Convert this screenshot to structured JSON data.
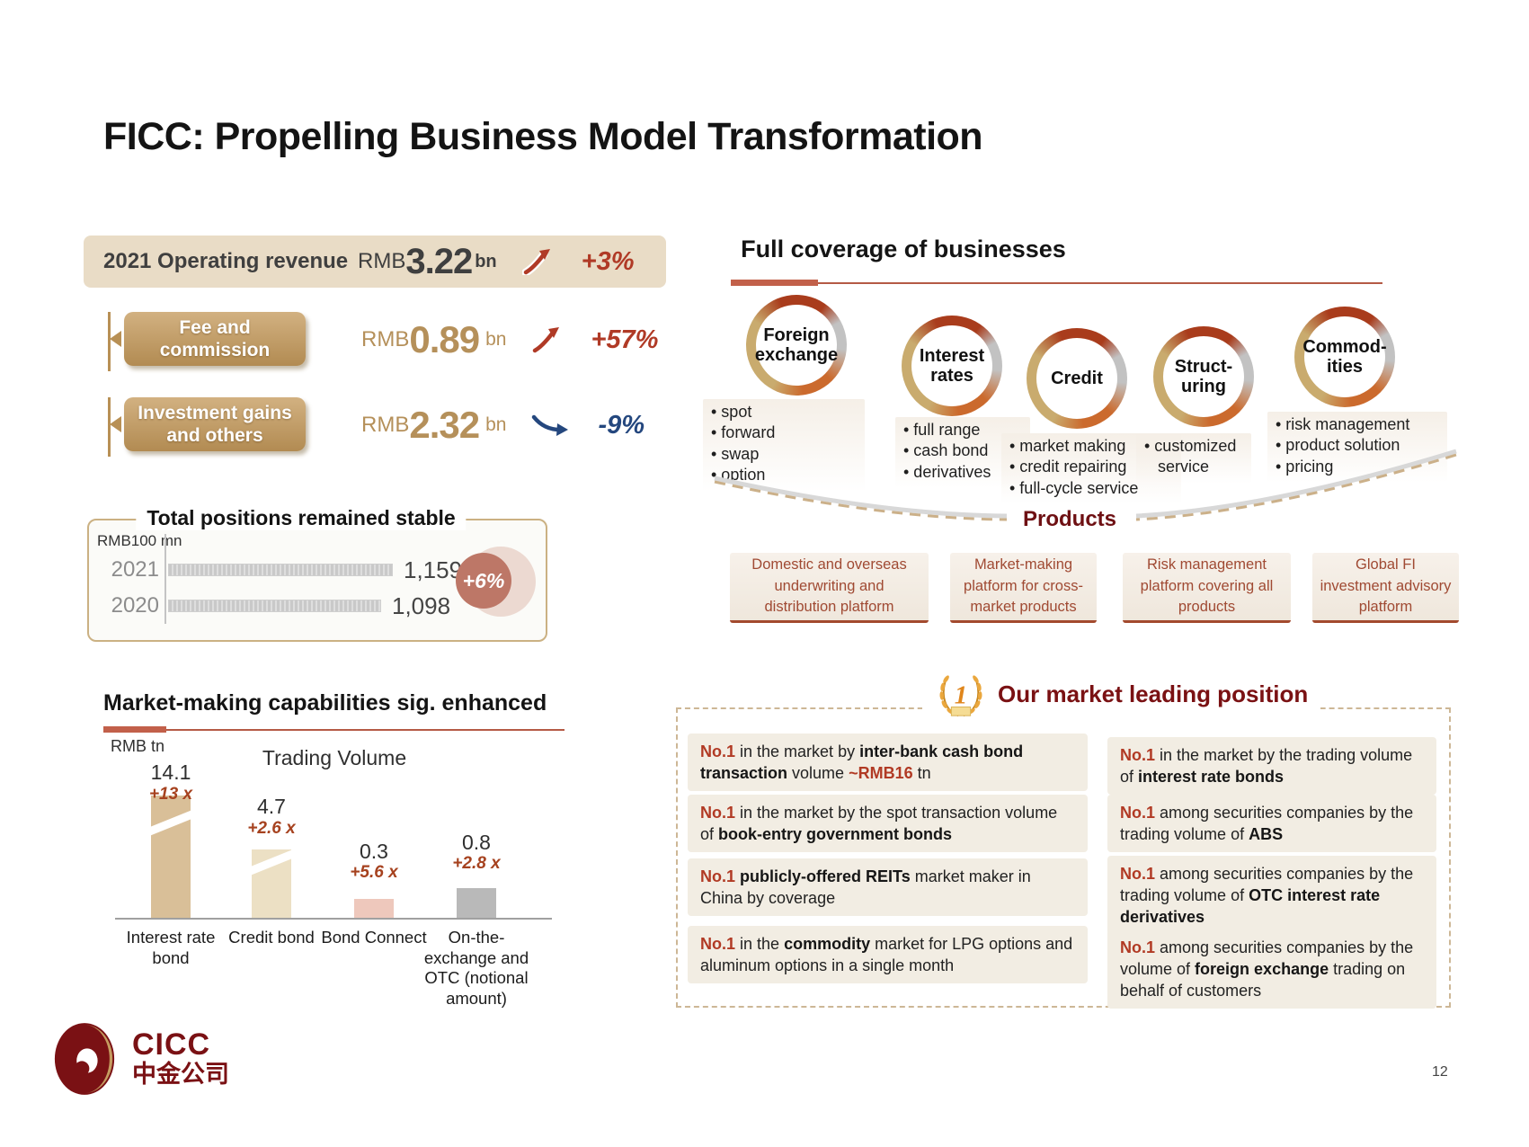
{
  "slide": {
    "title": "FICC: Propelling Business Model Transformation",
    "page_number": "12",
    "logo_text": "CICC",
    "logo_chinese": "中金公司"
  },
  "revenue": {
    "operating": {
      "label": "2021 Operating revenue",
      "currency": "RMB",
      "value": "3.22",
      "unit": "bn",
      "change": "+3%",
      "direction": "up"
    },
    "breakdown": [
      {
        "label": "Fee and commission",
        "currency": "RMB",
        "value": "0.89",
        "unit": "bn",
        "change": "+57%",
        "direction": "up"
      },
      {
        "label": "Investment gains and others",
        "currency": "RMB",
        "value": "2.32",
        "unit": "bn",
        "change": "-9%",
        "direction": "down"
      }
    ]
  },
  "positions": {
    "title": "Total positions remained stable",
    "badge": "+6%"
  },
  "market_making": {
    "title": "Market-making capabilities sig. enhanced"
  },
  "coverage": {
    "title": "Full coverage of businesses",
    "businesses": [
      {
        "name_lines": [
          "Foreign",
          "exchange"
        ],
        "bullets": [
          "spot",
          "forward",
          "swap",
          "option"
        ]
      },
      {
        "name_lines": [
          "Interest",
          "rates"
        ],
        "bullets": [
          "full range",
          "cash bond",
          "derivatives"
        ]
      },
      {
        "name_lines": [
          "Credit"
        ],
        "bullets": [
          "market making",
          "credit repairing",
          "full-cycle service"
        ]
      },
      {
        "name_lines": [
          "Struct-",
          "uring"
        ],
        "bullets": [
          "customized service"
        ]
      },
      {
        "name_lines": [
          "Commod-",
          "ities"
        ],
        "bullets": [
          "risk management",
          "product solution",
          "pricing"
        ]
      }
    ]
  },
  "products": {
    "label": "Products",
    "items": [
      "Domestic and overseas underwriting and distribution platform",
      "Market-making platform for cross-market products",
      "Risk management platform covering all products",
      "Global FI investment advisory platform"
    ]
  },
  "leading": {
    "title": "Our market leading position",
    "left": [
      [
        {
          "t": "No.1",
          "s": "no1"
        },
        {
          "t": " in the market by ",
          "s": "n"
        },
        {
          "t": "inter-bank cash bond transaction",
          "s": "b"
        },
        {
          "t": " volume ",
          "s": "n"
        },
        {
          "t": "~RMB16",
          "s": "no1"
        },
        {
          "t": " tn",
          "s": "n"
        }
      ],
      [
        {
          "t": "No.1",
          "s": "no1"
        },
        {
          "t": " in the market by the spot transaction volume of ",
          "s": "n"
        },
        {
          "t": "book-entry government bonds",
          "s": "b"
        }
      ],
      [
        {
          "t": "No.1",
          "s": "no1"
        },
        {
          "t": " ",
          "s": "n"
        },
        {
          "t": "publicly-offered REITs",
          "s": "b"
        },
        {
          "t": " market maker in China by coverage",
          "s": "n"
        }
      ],
      [
        {
          "t": "No.1",
          "s": "no1"
        },
        {
          "t": " in the ",
          "s": "n"
        },
        {
          "t": "commodity",
          "s": "b"
        },
        {
          "t": " market for LPG options and aluminum options in a single month",
          "s": "n"
        }
      ]
    ],
    "right": [
      [
        {
          "t": "No.1",
          "s": "no1"
        },
        {
          "t": " in the market by the trading volume of ",
          "s": "n"
        },
        {
          "t": "interest rate bonds",
          "s": "b"
        }
      ],
      [
        {
          "t": "No.1",
          "s": "no1"
        },
        {
          "t": " among securities companies by the trading volume of ",
          "s": "n"
        },
        {
          "t": "ABS",
          "s": "b"
        }
      ],
      [
        {
          "t": "No.1",
          "s": "no1"
        },
        {
          "t": " among securities companies by the trading volume of ",
          "s": "n"
        },
        {
          "t": "OTC interest rate derivatives",
          "s": "b"
        }
      ],
      [
        {
          "t": "No.1",
          "s": "no1"
        },
        {
          "t": " among securities companies by the volume of ",
          "s": "n"
        },
        {
          "t": "foreign exchange",
          "s": "b"
        },
        {
          "t": " trading on behalf of customers",
          "s": "n"
        }
      ]
    ]
  },
  "chart_data": [
    {
      "type": "bar",
      "orientation": "horizontal",
      "title": "Total positions remained stable",
      "unit": "RMB100 mn",
      "categories": [
        "2021",
        "2020"
      ],
      "values": [
        1159,
        1098
      ],
      "value_labels": [
        "1,159",
        "1,098"
      ],
      "annotation": "+6%",
      "bar_color": "#c9c9c9",
      "grid": false
    },
    {
      "type": "bar",
      "title": "Trading Volume",
      "unit": "RMB tn",
      "categories": [
        "Interest rate bond",
        "Credit bond",
        "Bond Connect",
        "On-the-exchange and OTC (notional amount)"
      ],
      "category_lines": [
        [
          "Interest rate",
          "bond"
        ],
        [
          "Credit bond"
        ],
        [
          "Bond Connect"
        ],
        [
          "On-the-",
          "exchange and",
          "OTC (notional",
          "amount)"
        ]
      ],
      "values": [
        14.1,
        4.7,
        0.3,
        0.8
      ],
      "value_labels": [
        "14.1",
        "4.7",
        "0.3",
        "0.8"
      ],
      "growth_labels": [
        "+13 x",
        "+2.6 x",
        "+5.6 x",
        "+2.8 x"
      ],
      "bar_colors": [
        "#d9bf98",
        "#ece0c4",
        "#eec8bc",
        "#b9b9b9"
      ],
      "axis_break": [
        true,
        true,
        false,
        false
      ],
      "ylim": [
        0,
        15
      ],
      "grid": false
    }
  ],
  "colors": {
    "accent_red": "#b03a26",
    "accent_navy": "#24477e",
    "maroon": "#7a1113",
    "tan_text": "#b5905a",
    "beige_box": "#e9dcc6",
    "badge_fill": "#bd7767",
    "divider": "#c2604a"
  }
}
